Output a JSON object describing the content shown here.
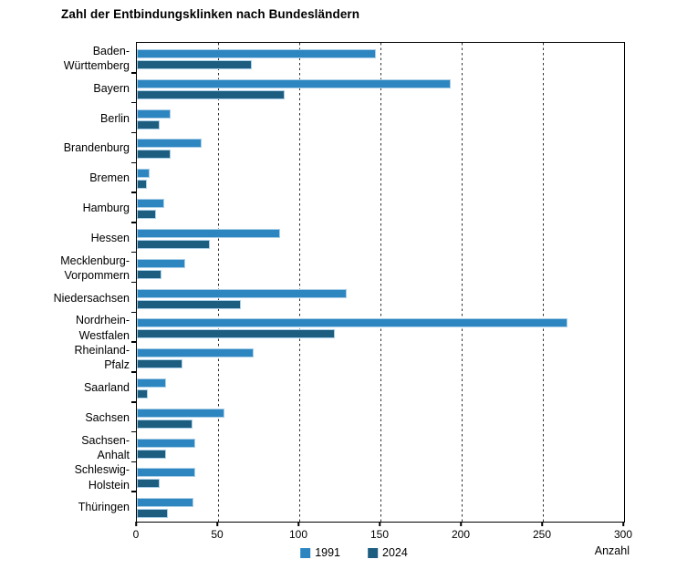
{
  "title": "Zahl der Entbindungsklinken nach Bundesländern",
  "chart_data": {
    "type": "bar",
    "orientation": "horizontal",
    "title": "Zahl der Entbindungsklinken nach Bundesländern",
    "xlabel": "Anzahl",
    "ylabel": "",
    "xlim": [
      0,
      300
    ],
    "xticks": [
      0,
      50,
      100,
      150,
      200,
      250,
      300
    ],
    "gridlines": [
      50,
      100,
      150,
      200,
      250
    ],
    "grid": "dashed-vertical",
    "legend_position": "bottom-center",
    "categories": [
      "Baden-\nWürttemberg",
      "Bayern",
      "Berlin",
      "Brandenburg",
      "Bremen",
      "Hamburg",
      "Hessen",
      "Mecklenburg-\nVorpommern",
      "Niedersachsen",
      "Nordrhein-\nWestfalen",
      "Rheinland-\nPfalz",
      "Saarland",
      "Sachsen",
      "Sachsen-\nAnhalt",
      "Schleswig-\nHolstein",
      "Thüringen"
    ],
    "series": [
      {
        "name": "1991",
        "color": "#2e86c1",
        "values": [
          147,
          193,
          21,
          40,
          8,
          17,
          88,
          30,
          129,
          265,
          72,
          18,
          54,
          36,
          36,
          35
        ]
      },
      {
        "name": "2024",
        "color": "#1d5d7f",
        "values": [
          71,
          91,
          14,
          21,
          6,
          12,
          45,
          15,
          64,
          122,
          28,
          7,
          34,
          18,
          14,
          19
        ]
      }
    ]
  },
  "legend": {
    "items": [
      {
        "label": "1991",
        "color": "#2e86c1"
      },
      {
        "label": "2024",
        "color": "#1d5d7f"
      }
    ]
  },
  "colors": {
    "bar_outline": "#a9cfe8",
    "axis": "#000000",
    "gridline": "#2e2e2e",
    "background": "#ffffff"
  }
}
